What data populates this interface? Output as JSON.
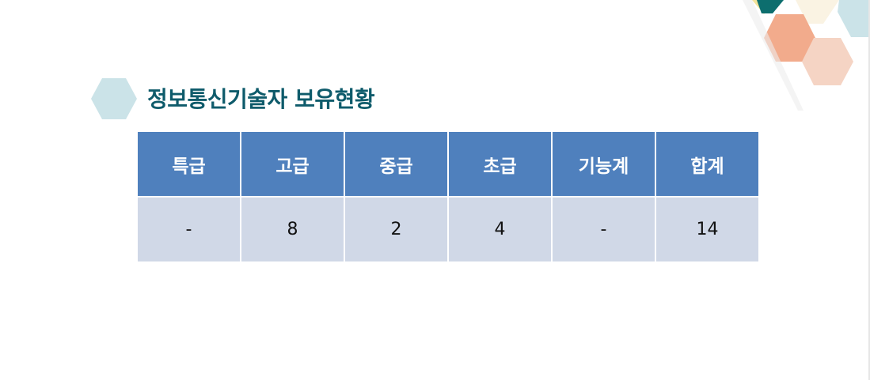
{
  "title": "정보통신기술자 보유현황",
  "table": {
    "headers": [
      "특급",
      "고급",
      "중급",
      "초급",
      "기능계",
      "합계"
    ],
    "rows": [
      [
        "-",
        "8",
        "2",
        "4",
        "-",
        "14"
      ]
    ]
  },
  "colors": {
    "header_bg": "#4f80bd",
    "cell_bg": "#d0d8e7",
    "title": "#0e5b6b",
    "hex_accent": "#cbe3e8"
  }
}
